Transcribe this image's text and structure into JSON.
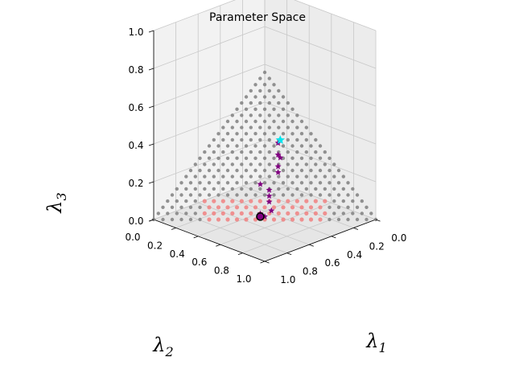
{
  "chart_data": {
    "type": "scatter3d",
    "title": "Parameter Space",
    "axes": {
      "x": {
        "label": "λ",
        "sub": "1",
        "ticks": [
          "0.0",
          "0.2",
          "0.4",
          "0.6",
          "0.8",
          "1.0"
        ],
        "range": [
          0,
          1
        ]
      },
      "y": {
        "label": "λ",
        "sub": "2",
        "ticks": [
          "0.0",
          "0.2",
          "0.4",
          "0.6",
          "0.8",
          "1.0"
        ],
        "range": [
          0,
          1
        ]
      },
      "z": {
        "label": "λ",
        "sub": "3",
        "ticks": [
          "0.0",
          "0.2",
          "0.4",
          "0.6",
          "0.8",
          "1.0"
        ],
        "range": [
          0,
          1
        ]
      }
    },
    "grid": true,
    "simplex_surface": {
      "description": "λ1 + λ2 + λ3 = 1",
      "color": "#808080"
    },
    "highlight_region": {
      "color": "#f08080",
      "z_max": 0.15
    },
    "trajectory": {
      "color": "#800080",
      "marker": "star",
      "points": [
        [
          0.3,
          0.18,
          0.52
        ],
        [
          0.34,
          0.22,
          0.44
        ],
        [
          0.36,
          0.22,
          0.42
        ],
        [
          0.38,
          0.26,
          0.36
        ],
        [
          0.4,
          0.28,
          0.32
        ],
        [
          0.36,
          0.4,
          0.24
        ],
        [
          0.42,
          0.38,
          0.2
        ],
        [
          0.44,
          0.4,
          0.16
        ],
        [
          0.46,
          0.42,
          0.12
        ],
        [
          0.5,
          0.44,
          0.06
        ],
        [
          0.46,
          0.5,
          0.04
        ],
        [
          0.49,
          0.49,
          0.02
        ]
      ]
    },
    "start_point": {
      "color": "#00e5ee",
      "marker": "star",
      "xyz": [
        0.3,
        0.16,
        0.54
      ]
    },
    "end_point": {
      "color": "#000000",
      "marker": "circle",
      "xyz": [
        0.47,
        0.51,
        0.02
      ]
    }
  }
}
